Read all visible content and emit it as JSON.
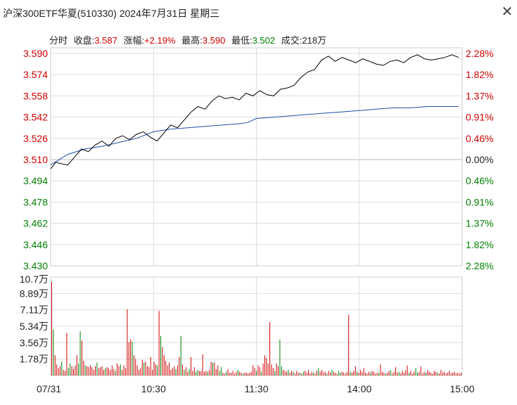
{
  "window": {
    "title": "沪深300ETF华夏(510330) 2024年7月31日 星期三",
    "close_icon": "close-icon"
  },
  "info": {
    "mode": "分时",
    "close_label": "收盘:",
    "close_value": "3.587",
    "change_label": "涨幅:",
    "change_value": "+2.19%",
    "high_label": "最高:",
    "high_value": "3.590",
    "low_label": "最低:",
    "low_value": "3.502",
    "volume_label": "成交:",
    "volume_value": "218万"
  },
  "colors": {
    "up": "#d00000",
    "down": "#008000",
    "price": "#000000",
    "avg": "#1f4fa8",
    "grid": "#dddddd"
  },
  "chart_data": [
    {
      "type": "line",
      "y_ticks": [
        "3.590",
        "3.574",
        "3.558",
        "3.542",
        "3.526",
        "3.510",
        "3.494",
        "3.478",
        "3.462",
        "3.446",
        "3.430"
      ],
      "pct_ticks": [
        "2.28%",
        "1.82%",
        "1.37%",
        "0.91%",
        "0.46%",
        "0.00%",
        "0.46%",
        "0.91%",
        "1.37%",
        "1.82%",
        "2.28%"
      ],
      "ylim": [
        3.43,
        3.59
      ],
      "x_ticks": [
        "07/31",
        "10:30",
        "11:30",
        "14:00",
        "15:00"
      ],
      "series": [
        {
          "role": "price",
          "x": [
            0,
            3,
            6,
            10,
            14,
            18,
            22,
            26,
            30,
            34,
            38,
            42,
            46,
            50,
            54,
            58,
            62,
            66,
            70,
            74,
            78,
            82,
            86,
            90,
            94,
            98,
            102,
            106,
            110,
            114,
            118,
            122,
            126,
            130,
            134,
            138,
            142,
            146,
            150,
            154,
            158,
            162,
            166,
            170,
            174,
            178,
            182,
            186,
            190,
            194,
            198,
            202,
            206,
            210,
            214,
            218,
            222,
            226,
            230,
            234,
            238
          ],
          "y": [
            3.503,
            3.508,
            3.507,
            3.506,
            3.512,
            3.518,
            3.516,
            3.521,
            3.524,
            3.52,
            3.526,
            3.528,
            3.525,
            3.529,
            3.531,
            3.527,
            3.524,
            3.53,
            3.536,
            3.534,
            3.54,
            3.546,
            3.55,
            3.548,
            3.554,
            3.558,
            3.556,
            3.557,
            3.555,
            3.56,
            3.558,
            3.562,
            3.559,
            3.558,
            3.563,
            3.564,
            3.566,
            3.572,
            3.576,
            3.578,
            3.585,
            3.588,
            3.584,
            3.587,
            3.585,
            3.583,
            3.586,
            3.584,
            3.582,
            3.581,
            3.584,
            3.585,
            3.583,
            3.587,
            3.589,
            3.586,
            3.585,
            3.586,
            3.587,
            3.589,
            3.587
          ]
        },
        {
          "role": "average",
          "x": [
            0,
            10,
            20,
            30,
            40,
            50,
            60,
            70,
            80,
            90,
            100,
            110,
            115,
            120,
            130,
            140,
            150,
            160,
            170,
            180,
            190,
            200,
            210,
            220,
            230,
            238
          ],
          "y": [
            3.506,
            3.514,
            3.518,
            3.52,
            3.523,
            3.526,
            3.531,
            3.533,
            3.534,
            3.535,
            3.536,
            3.537,
            3.538,
            3.541,
            3.542,
            3.543,
            3.544,
            3.545,
            3.546,
            3.547,
            3.548,
            3.549,
            3.549,
            3.55,
            3.55,
            3.55
          ]
        }
      ]
    },
    {
      "type": "bar",
      "y_ticks": [
        "10.7万",
        "8.89万",
        "7.11万",
        "5.34万",
        "3.56万",
        "1.78万"
      ],
      "ylim": [
        0,
        10.7
      ],
      "values": [
        10.2,
        5.0,
        2.2,
        1.2,
        0.8,
        1.0,
        1.5,
        0.6,
        0.5,
        4.6,
        0.8,
        1.3,
        1.0,
        0.7,
        1.1,
        2.2,
        1.3,
        4.8,
        3.8,
        1.6,
        1.1,
        1.0,
        0.9,
        1.1,
        0.9,
        0.6,
        1.0,
        1.4,
        0.8,
        0.9,
        1.0,
        0.6,
        0.8,
        0.9,
        0.8,
        0.6,
        1.1,
        0.7,
        0.5,
        1.3,
        1.0,
        1.2,
        0.6,
        1.1,
        0.8,
        7.2,
        3.6,
        3.9,
        3.7,
        2.2,
        1.8,
        1.1,
        0.6,
        0.8,
        1.7,
        1.4,
        1.5,
        1.0,
        0.9,
        2.0,
        0.6,
        1.5,
        1.2,
        1.1,
        7.0,
        4.3,
        3.1,
        2.2,
        1.6,
        1.1,
        1.4,
        0.6,
        0.8,
        1.0,
        0.7,
        1.1,
        2.0,
        4.3,
        1.2,
        0.6,
        0.9,
        0.4,
        0.7,
        2.0,
        0.5,
        0.9,
        0.4,
        0.6,
        0.5,
        0.5,
        2.3,
        0.4,
        0.5,
        0.4,
        0.6,
        1.5,
        1.4,
        1.4,
        0.7,
        1.1,
        0.5,
        0.9,
        0.3,
        0.2,
        0.4,
        0.7,
        0.3,
        0.3,
        0.5,
        0.2,
        0.4,
        0.6,
        0.4,
        0.3,
        0.2,
        0.3,
        0.3,
        0.2,
        0.3,
        0.4,
        1.1,
        0.8,
        0.5,
        1.1,
        0.9,
        0.4,
        1.3,
        2.2,
        1.9,
        1.3,
        5.8,
        1.2,
        0.8,
        0.5,
        1.3,
        1.0,
        3.9,
        1.0,
        0.6,
        0.5,
        0.4,
        0.6,
        0.3,
        0.5,
        0.4,
        0.2,
        0.5,
        0.3,
        0.3,
        0.2,
        0.4,
        0.5,
        0.3,
        0.6,
        0.2,
        0.4,
        0.3,
        0.2,
        0.5,
        0.8,
        0.4,
        0.6,
        0.3,
        0.4,
        0.2,
        0.5,
        0.3,
        0.6,
        0.4,
        0.3,
        0.2,
        0.5,
        0.3,
        0.4,
        0.3,
        0.2,
        0.4,
        6.6,
        0.4,
        0.3,
        0.5,
        1.0,
        0.4,
        0.3,
        0.6,
        0.4,
        0.8,
        0.3,
        0.2,
        0.4,
        0.3,
        0.5,
        0.4,
        0.2,
        0.3,
        0.3,
        1.2,
        0.4,
        0.3,
        0.2,
        0.3,
        0.5,
        0.6,
        0.2,
        0.4,
        0.9,
        0.3,
        0.4,
        0.2,
        0.5,
        0.3,
        0.6,
        1.1,
        0.3,
        0.5,
        0.2,
        0.4,
        0.8,
        0.3,
        0.4,
        1.0,
        0.2,
        0.4,
        0.3,
        0.6,
        0.4,
        0.3,
        0.2,
        0.5,
        0.4,
        0.3,
        0.2,
        0.6,
        0.3,
        0.4,
        0.2,
        0.3,
        0.5,
        0.2,
        0.3,
        0.4,
        0.2,
        0.3,
        0.2,
        0.3
      ],
      "directions": "rgrrrrgrrrggrrrrggrrgrrrrrrgrrrrgrrrrrgrrgrrrrrrgrrrrrrgrrrrrrrgrgrrrrrrrrgrrgrgrrgrrrggrrrrrgrrgrrrggrrgrrrrrrgrrgrrrrrrrgrrgrrrrrrrgrrggrrrgrrgrrrgrgrrrrrgrrgrrrrgrrgrrrggrrrrrgrrrgrrrrrrrgrrrrgrrrgrrgrrrrgrrrrrgrrrggrrrrgrrrrrrg"
    }
  ]
}
